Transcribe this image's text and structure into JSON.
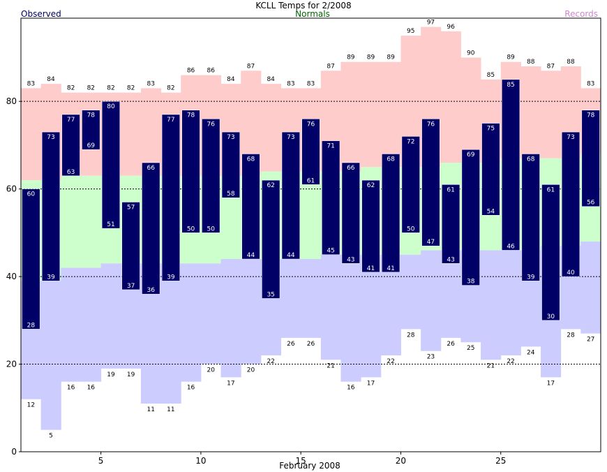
{
  "chart_data": {
    "type": "bar",
    "title": "KCLL Temps for 2/2008",
    "xlabel": "February 2008",
    "ylabel": "",
    "legend": {
      "observed": "Observed",
      "normals": "Normals",
      "records": "Records",
      "placement": "top"
    },
    "xlim": [
      1,
      30
    ],
    "ylim": [
      0,
      99
    ],
    "x_ticks": [
      5,
      10,
      15,
      20,
      25
    ],
    "y_ticks": [
      0,
      20,
      40,
      60,
      80
    ],
    "gridlines_y": [
      20,
      40,
      60,
      80
    ],
    "days": [
      1,
      2,
      3,
      4,
      5,
      6,
      7,
      8,
      9,
      10,
      11,
      12,
      13,
      14,
      15,
      16,
      17,
      18,
      19,
      20,
      21,
      22,
      23,
      24,
      25,
      26,
      27,
      28,
      29
    ],
    "series": [
      {
        "name": "Records",
        "kind": "record_range",
        "high": [
          83,
          84,
          82,
          82,
          82,
          82,
          83,
          82,
          86,
          86,
          84,
          87,
          84,
          83,
          83,
          87,
          89,
          89,
          89,
          95,
          97,
          96,
          90,
          85,
          89,
          88,
          87,
          88,
          83
        ],
        "low": [
          12,
          5,
          16,
          16,
          19,
          19,
          11,
          11,
          16,
          20,
          17,
          20,
          22,
          26,
          26,
          21,
          16,
          17,
          22,
          28,
          23,
          26,
          25,
          21,
          22,
          24,
          17,
          28,
          27
        ]
      },
      {
        "name": "Normals",
        "kind": "normal_range",
        "high": [
          62,
          62,
          63,
          63,
          63,
          63,
          63,
          63,
          63,
          63,
          63,
          63,
          64,
          64,
          64,
          64,
          64,
          65,
          65,
          65,
          65,
          66,
          66,
          66,
          67,
          67,
          67,
          67,
          68
        ],
        "low": [
          39,
          39,
          42,
          42,
          43,
          43,
          43,
          43,
          43,
          43,
          44,
          44,
          44,
          44,
          44,
          45,
          45,
          45,
          45,
          45,
          46,
          46,
          46,
          46,
          46,
          46,
          47,
          47,
          48
        ]
      },
      {
        "name": "Observed",
        "kind": "observed_range",
        "high": [
          60,
          73,
          77,
          78,
          80,
          57,
          66,
          77,
          78,
          76,
          73,
          68,
          62,
          73,
          76,
          71,
          66,
          62,
          68,
          72,
          76,
          61,
          69,
          75,
          85,
          68,
          61,
          73,
          78
        ],
        "low": [
          28,
          39,
          63,
          69,
          51,
          37,
          36,
          39,
          50,
          50,
          58,
          44,
          35,
          44,
          61,
          45,
          43,
          41,
          41,
          50,
          47,
          43,
          38,
          54,
          46,
          39,
          30,
          40,
          56
        ]
      }
    ],
    "colors": {
      "record_band": "#ffcccc",
      "normal_band": "#ccffcc",
      "cold_band": "#ccccff",
      "observed_bar": "#000066",
      "observed_text": "#ffffff",
      "grid": "#000000",
      "legend_observed": "#000066",
      "legend_normals": "#006600",
      "legend_records": "#cc88cc"
    }
  }
}
